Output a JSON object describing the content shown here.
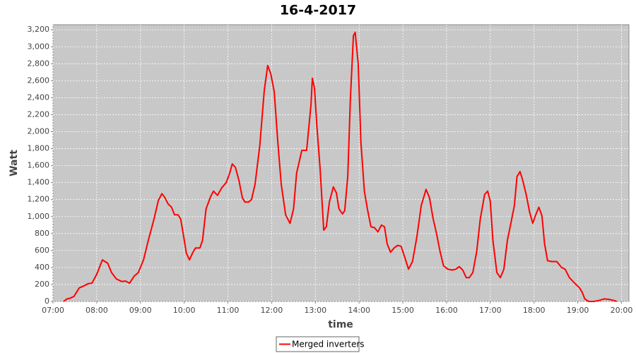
{
  "chart_data": {
    "type": "line",
    "title": "16-4-2017",
    "x_label": "time",
    "y_label": "Watt",
    "xlim": [
      7,
      20.17
    ],
    "ylim": [
      0,
      3260
    ],
    "grid": true,
    "legend": "bottom",
    "xticks": [
      {
        "value": 7,
        "label": "07:00"
      },
      {
        "value": 8,
        "label": "08:00"
      },
      {
        "value": 9,
        "label": "09:00"
      },
      {
        "value": 10,
        "label": "10:00"
      },
      {
        "value": 11,
        "label": "11:00"
      },
      {
        "value": 12,
        "label": "12:00"
      },
      {
        "value": 13,
        "label": "13:00"
      },
      {
        "value": 14,
        "label": "14:00"
      },
      {
        "value": 15,
        "label": "15:00"
      },
      {
        "value": 16,
        "label": "16:00"
      },
      {
        "value": 17,
        "label": "17:00"
      },
      {
        "value": 18,
        "label": "18:00"
      },
      {
        "value": 19,
        "label": "19:00"
      },
      {
        "value": 20,
        "label": "20:00"
      }
    ],
    "yticks": [
      0,
      200,
      400,
      600,
      800,
      {
        "value": 1000,
        "label": "1,000"
      },
      {
        "value": 1200,
        "label": "1,200"
      },
      {
        "value": 1400,
        "label": "1,400"
      },
      {
        "value": 1600,
        "label": "1,600"
      },
      {
        "value": 1800,
        "label": "1,800"
      },
      {
        "value": 2000,
        "label": "2,000"
      },
      {
        "value": 2200,
        "label": "2,200"
      },
      {
        "value": 2400,
        "label": "2,400"
      },
      {
        "value": 2600,
        "label": "2,600"
      },
      {
        "value": 2800,
        "label": "2,800"
      },
      {
        "value": 3000,
        "label": "3,000"
      },
      {
        "value": 3200,
        "label": "3,200"
      }
    ],
    "x": [
      7.24,
      7.32,
      7.4,
      7.48,
      7.6,
      7.73,
      7.81,
      7.89,
      8.0,
      8.13,
      8.25,
      8.34,
      8.45,
      8.57,
      8.66,
      8.75,
      8.86,
      8.95,
      9.07,
      9.18,
      9.31,
      9.41,
      9.49,
      9.55,
      9.63,
      9.71,
      9.78,
      9.86,
      9.92,
      9.99,
      10.05,
      10.12,
      10.2,
      10.26,
      10.36,
      10.42,
      10.5,
      10.6,
      10.67,
      10.76,
      10.86,
      10.96,
      11.04,
      11.1,
      11.17,
      11.25,
      11.33,
      11.39,
      11.47,
      11.54,
      11.62,
      11.73,
      11.83,
      11.91,
      11.98,
      12.06,
      12.14,
      12.22,
      12.32,
      12.42,
      12.5,
      12.57,
      12.69,
      12.8,
      12.9,
      12.93,
      12.98,
      13.03,
      13.11,
      13.19,
      13.25,
      13.32,
      13.41,
      13.48,
      13.54,
      13.62,
      13.67,
      13.74,
      13.8,
      13.87,
      13.91,
      13.98,
      14.04,
      14.12,
      14.19,
      14.27,
      14.35,
      14.43,
      14.51,
      14.58,
      14.64,
      14.72,
      14.8,
      14.88,
      14.96,
      15.05,
      15.13,
      15.22,
      15.32,
      15.42,
      15.53,
      15.61,
      15.69,
      15.77,
      15.85,
      15.93,
      16.03,
      16.13,
      16.21,
      16.29,
      16.37,
      16.45,
      16.52,
      16.6,
      16.69,
      16.77,
      16.87,
      16.94,
      17.0,
      17.06,
      17.15,
      17.23,
      17.31,
      17.39,
      17.47,
      17.55,
      17.61,
      17.68,
      17.74,
      17.82,
      17.9,
      17.97,
      18.03,
      18.11,
      18.18,
      18.24,
      18.31,
      18.41,
      18.52,
      18.63,
      18.71,
      18.81,
      18.92,
      19.04,
      19.1,
      19.16,
      19.25,
      19.36,
      19.47,
      19.6,
      19.71,
      19.84,
      19.89
    ],
    "series": [
      {
        "name": "Merged inverters",
        "color": "#ff0000",
        "values": [
          0,
          30,
          40,
          60,
          160,
          190,
          210,
          215,
          320,
          490,
          450,
          340,
          265,
          235,
          240,
          215,
          300,
          340,
          490,
          720,
          970,
          1190,
          1270,
          1230,
          1150,
          1110,
          1020,
          1020,
          970,
          760,
          570,
          490,
          580,
          630,
          630,
          720,
          1090,
          1230,
          1300,
          1250,
          1340,
          1400,
          1510,
          1620,
          1580,
          1430,
          1220,
          1170,
          1170,
          1200,
          1380,
          1840,
          2480,
          2780,
          2680,
          2470,
          1880,
          1380,
          1020,
          920,
          1090,
          1510,
          1780,
          1780,
          2320,
          2630,
          2510,
          2090,
          1550,
          840,
          880,
          1170,
          1350,
          1280,
          1090,
          1030,
          1070,
          1470,
          2380,
          3130,
          3170,
          2800,
          1880,
          1300,
          1090,
          880,
          870,
          820,
          900,
          880,
          680,
          580,
          630,
          660,
          650,
          510,
          380,
          470,
          760,
          1130,
          1320,
          1220,
          980,
          800,
          590,
          420,
          380,
          370,
          380,
          410,
          370,
          280,
          280,
          340,
          590,
          970,
          1260,
          1300,
          1180,
          720,
          340,
          280,
          380,
          720,
          920,
          1130,
          1470,
          1530,
          1430,
          1260,
          1050,
          920,
          1010,
          1110,
          1010,
          680,
          480,
          470,
          470,
          400,
          380,
          280,
          220,
          160,
          110,
          30,
          0,
          0,
          10,
          30,
          25,
          10,
          0
        ]
      }
    ]
  }
}
